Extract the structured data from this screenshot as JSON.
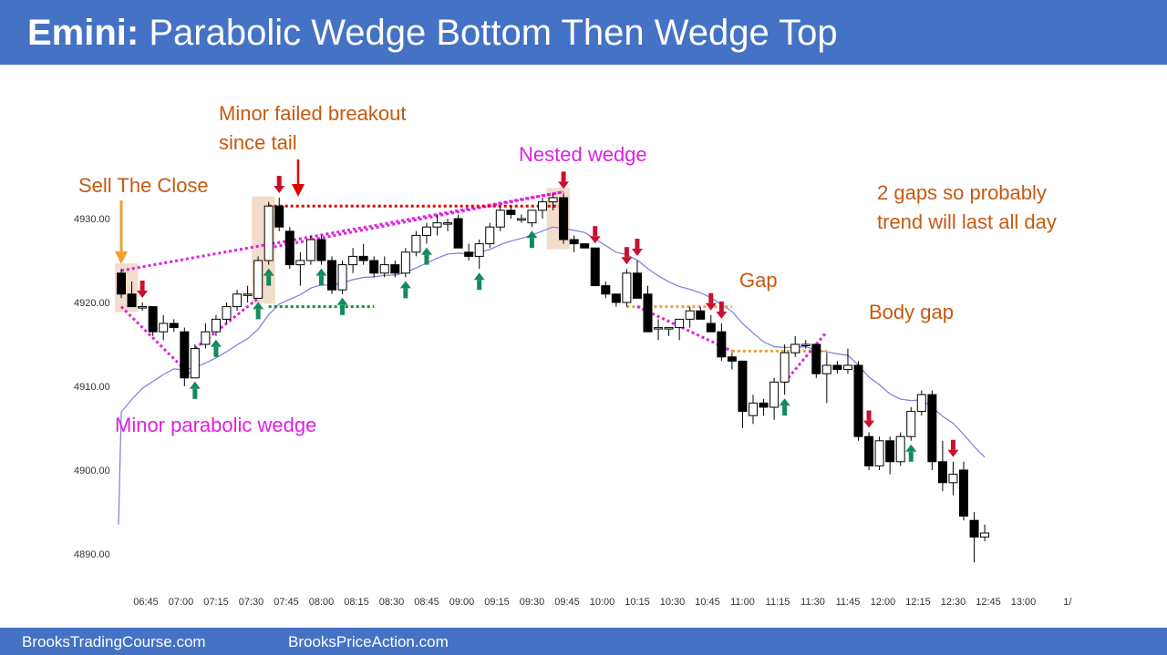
{
  "header": {
    "title_bold": "Emini:",
    "title_rest": " Parabolic Wedge Bottom Then Wedge Top"
  },
  "footer": {
    "left": "BrooksTradingCourse.com",
    "right": "BrooksPriceAction.com"
  },
  "colors": {
    "header": "#4472c4",
    "bull_arrow": "#138a5e",
    "bear_arrow": "#c8102e",
    "wedge": "#e020e0",
    "annotation": "#c55a11",
    "ema": "#7b7be0",
    "resistance": "#e00000",
    "support": "#1a8f1a",
    "gap": "#f0a030",
    "highlight": "#f2dccb"
  },
  "chart_data": {
    "type": "candlestick",
    "y_ticks": [
      "4930.00",
      "4920.00",
      "4910.00",
      "4900.00",
      "4890.00"
    ],
    "x_ticks": [
      "06:45",
      "07:00",
      "07:15",
      "07:30",
      "07:45",
      "08:00",
      "08:15",
      "08:30",
      "08:45",
      "09:00",
      "09:15",
      "09:30",
      "09:45",
      "10:00",
      "10:15",
      "10:30",
      "10:45",
      "11:00",
      "11:15",
      "11:30",
      "11:45",
      "12:00",
      "12:15",
      "12:30",
      "12:45",
      "13:00",
      "1/"
    ],
    "ylim": [
      4887,
      4936
    ],
    "bars": [
      [
        4923.5,
        4924,
        4920.5,
        4921
      ],
      [
        4921,
        4922.5,
        4919.5,
        4919.5
      ],
      [
        4919.5,
        4920,
        4919,
        4919.5
      ],
      [
        4919.5,
        4919.5,
        4916,
        4916.5
      ],
      [
        4916.5,
        4918.5,
        4915.5,
        4917.5
      ],
      [
        4917.5,
        4918,
        4916.5,
        4917
      ],
      [
        4916.5,
        4917,
        4910,
        4911
      ],
      [
        4911,
        4915,
        4911,
        4914.5
      ],
      [
        4915,
        4917.5,
        4914.5,
        4916.5
      ],
      [
        4916.5,
        4918.5,
        4916,
        4918
      ],
      [
        4918,
        4920,
        4917.5,
        4919.5
      ],
      [
        4919.5,
        4921.5,
        4919,
        4921
      ],
      [
        4921,
        4922,
        4920,
        4921
      ],
      [
        4920.5,
        4925.5,
        4920.5,
        4925
      ],
      [
        4925,
        4932,
        4924.5,
        4931.5
      ],
      [
        4931.5,
        4932.5,
        4928.5,
        4929
      ],
      [
        4928.5,
        4929,
        4924,
        4924.5
      ],
      [
        4924.5,
        4926,
        4922,
        4925
      ],
      [
        4925,
        4928,
        4924.5,
        4927.5
      ],
      [
        4927.5,
        4928,
        4924.5,
        4925
      ],
      [
        4925,
        4925.5,
        4921,
        4921.5
      ],
      [
        4921.5,
        4925,
        4921,
        4924.5
      ],
      [
        4924.5,
        4926.5,
        4923.5,
        4925.5
      ],
      [
        4925.5,
        4927,
        4924.5,
        4925
      ],
      [
        4925,
        4925.5,
        4923,
        4923.5
      ],
      [
        4923.5,
        4925.5,
        4923,
        4924.5
      ],
      [
        4924.5,
        4925,
        4923,
        4923.5
      ],
      [
        4923.5,
        4926.5,
        4923,
        4926
      ],
      [
        4926,
        4928.5,
        4925.5,
        4928
      ],
      [
        4928,
        4929.5,
        4927,
        4929
      ],
      [
        4929,
        4930.5,
        4928,
        4929.5
      ],
      [
        4929.5,
        4930,
        4928.5,
        4929.5
      ],
      [
        4930,
        4930.5,
        4926.5,
        4926.5
      ],
      [
        4926,
        4927,
        4925,
        4925.5
      ],
      [
        4925.5,
        4927.5,
        4924,
        4927
      ],
      [
        4927,
        4929.5,
        4926.5,
        4929
      ],
      [
        4929,
        4931.5,
        4928.5,
        4931
      ],
      [
        4931,
        4931.5,
        4930,
        4930.5
      ],
      [
        4930,
        4930.5,
        4929.5,
        4930
      ],
      [
        4929.5,
        4931,
        4929,
        4931
      ],
      [
        4931,
        4932.5,
        4930,
        4932
      ],
      [
        4932,
        4933,
        4931,
        4932.5
      ],
      [
        4932.5,
        4933,
        4927,
        4927.5
      ],
      [
        4927.5,
        4928,
        4926,
        4927
      ],
      [
        4927,
        4927,
        4926.5,
        4926.5
      ],
      [
        4926.5,
        4926.5,
        4922,
        4922
      ],
      [
        4922,
        4922.5,
        4920.5,
        4921
      ],
      [
        4921,
        4921,
        4919.5,
        4920
      ],
      [
        4920,
        4924,
        4919.5,
        4923.5
      ],
      [
        4923.5,
        4925,
        4921.5,
        4920.5
      ],
      [
        4921,
        4922,
        4916.5,
        4916.5
      ],
      [
        4917,
        4918,
        4915.5,
        4917
      ],
      [
        4917,
        4917,
        4916,
        4917
      ],
      [
        4917,
        4918,
        4915.5,
        4918
      ],
      [
        4918,
        4919.5,
        4917,
        4919
      ],
      [
        4919,
        4919.5,
        4918,
        4918
      ],
      [
        4917.5,
        4918.5,
        4916.5,
        4916.5
      ],
      [
        4916.5,
        4917.5,
        4913,
        4913.5
      ],
      [
        4913.5,
        4914,
        4912,
        4913
      ],
      [
        4913,
        4913,
        4905,
        4907
      ],
      [
        4906.5,
        4909,
        4905.5,
        4908
      ],
      [
        4908,
        4908.5,
        4906.5,
        4907.5
      ],
      [
        4907.5,
        4911,
        4906,
        4910.5
      ],
      [
        4910.5,
        4915,
        4909,
        4914
      ],
      [
        4914,
        4916,
        4913.5,
        4915
      ],
      [
        4915,
        4915.5,
        4914.5,
        4915
      ],
      [
        4915,
        4915,
        4911,
        4911.5
      ],
      [
        4911.5,
        4914,
        4908,
        4912.5
      ],
      [
        4912.5,
        4913,
        4911.5,
        4912
      ],
      [
        4912,
        4914.5,
        4911.5,
        4912.5
      ],
      [
        4912.5,
        4913,
        4903.5,
        4904
      ],
      [
        4904,
        4904.5,
        4900,
        4900.5
      ],
      [
        4900.5,
        4904,
        4900,
        4903.5
      ],
      [
        4903.5,
        4904,
        4899.5,
        4901
      ],
      [
        4901,
        4904.5,
        4900.5,
        4904
      ],
      [
        4904,
        4907.5,
        4903.5,
        4907
      ],
      [
        4907,
        4909.5,
        4906.5,
        4909
      ],
      [
        4909,
        4909.5,
        4900,
        4901
      ],
      [
        4901,
        4903.5,
        4897.5,
        4898.5
      ],
      [
        4898.5,
        4901,
        4897,
        4899.5
      ],
      [
        4900,
        4901,
        4894,
        4894.5
      ],
      [
        4894,
        4895,
        4889,
        4892
      ],
      [
        4892,
        4893.5,
        4891.5,
        4892.5
      ]
    ],
    "bull_signal_bars": [
      7,
      9,
      13,
      14,
      19,
      21,
      27,
      29,
      34,
      39,
      63,
      75
    ],
    "bear_signal_bars": [
      2,
      15,
      42,
      45,
      48,
      49,
      56,
      57,
      71,
      79
    ],
    "annotations": [
      {
        "text": "Sell The Close",
        "color": "#c55a11"
      },
      {
        "text": "Minor failed breakout",
        "color": "#c55a11"
      },
      {
        "text": "since tail",
        "color": "#c55a11"
      },
      {
        "text": "Nested wedge",
        "color": "#e020e0"
      },
      {
        "text": "2 gaps so probably",
        "color": "#c55a11"
      },
      {
        "text": "trend will last all day",
        "color": "#c55a11"
      },
      {
        "text": "Gap",
        "color": "#c55a11"
      },
      {
        "text": "Body gap",
        "color": "#c55a11"
      },
      {
        "text": "Minor parabolic wedge",
        "color": "#e020e0"
      }
    ]
  }
}
